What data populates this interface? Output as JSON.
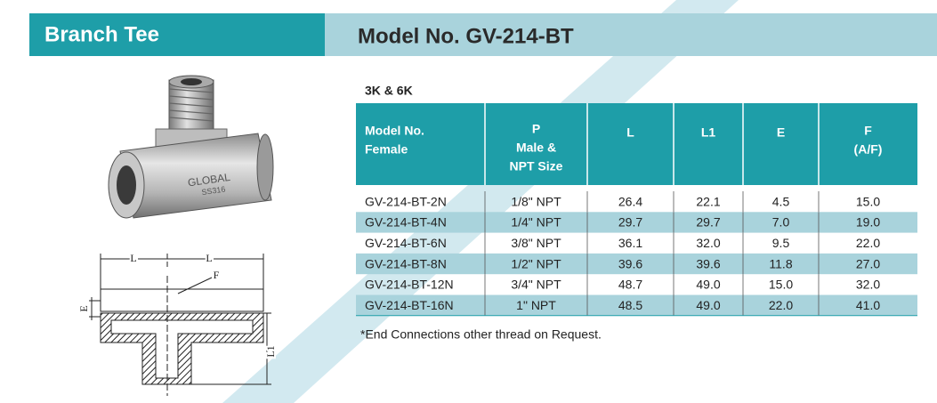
{
  "header": {
    "title": "Branch Tee",
    "model": "Model No. GV-214-BT"
  },
  "photo": {
    "brand": "GLOBAL",
    "material": "SS316"
  },
  "drawing": {
    "labels": [
      "L",
      "L",
      "F",
      "E",
      "L1"
    ]
  },
  "table": {
    "caption": "3K & 6K",
    "columns": [
      [
        "Model No.",
        "Female"
      ],
      [
        "P",
        "Male &",
        "NPT Size"
      ],
      [
        "L"
      ],
      [
        "L1"
      ],
      [
        "E"
      ],
      [
        "F",
        "(A/F)"
      ]
    ],
    "rows": [
      [
        "GV-214-BT-2N",
        "1/8\" NPT",
        "26.4",
        "22.1",
        "4.5",
        "15.0"
      ],
      [
        "GV-214-BT-4N",
        "1/4\" NPT",
        "29.7",
        "29.7",
        "7.0",
        "19.0"
      ],
      [
        "GV-214-BT-6N",
        "3/8\" NPT",
        "36.1",
        "32.0",
        "9.5",
        "22.0"
      ],
      [
        "GV-214-BT-8N",
        "1/2\" NPT",
        "39.6",
        "39.6",
        "11.8",
        "27.0"
      ],
      [
        "GV-214-BT-12N",
        "3/4\" NPT",
        "48.7",
        "49.0",
        "15.0",
        "32.0"
      ],
      [
        "GV-214-BT-16N",
        "1\" NPT",
        "48.5",
        "49.0",
        "22.0",
        "41.0"
      ]
    ]
  },
  "note": "*End Connections other thread on Request."
}
